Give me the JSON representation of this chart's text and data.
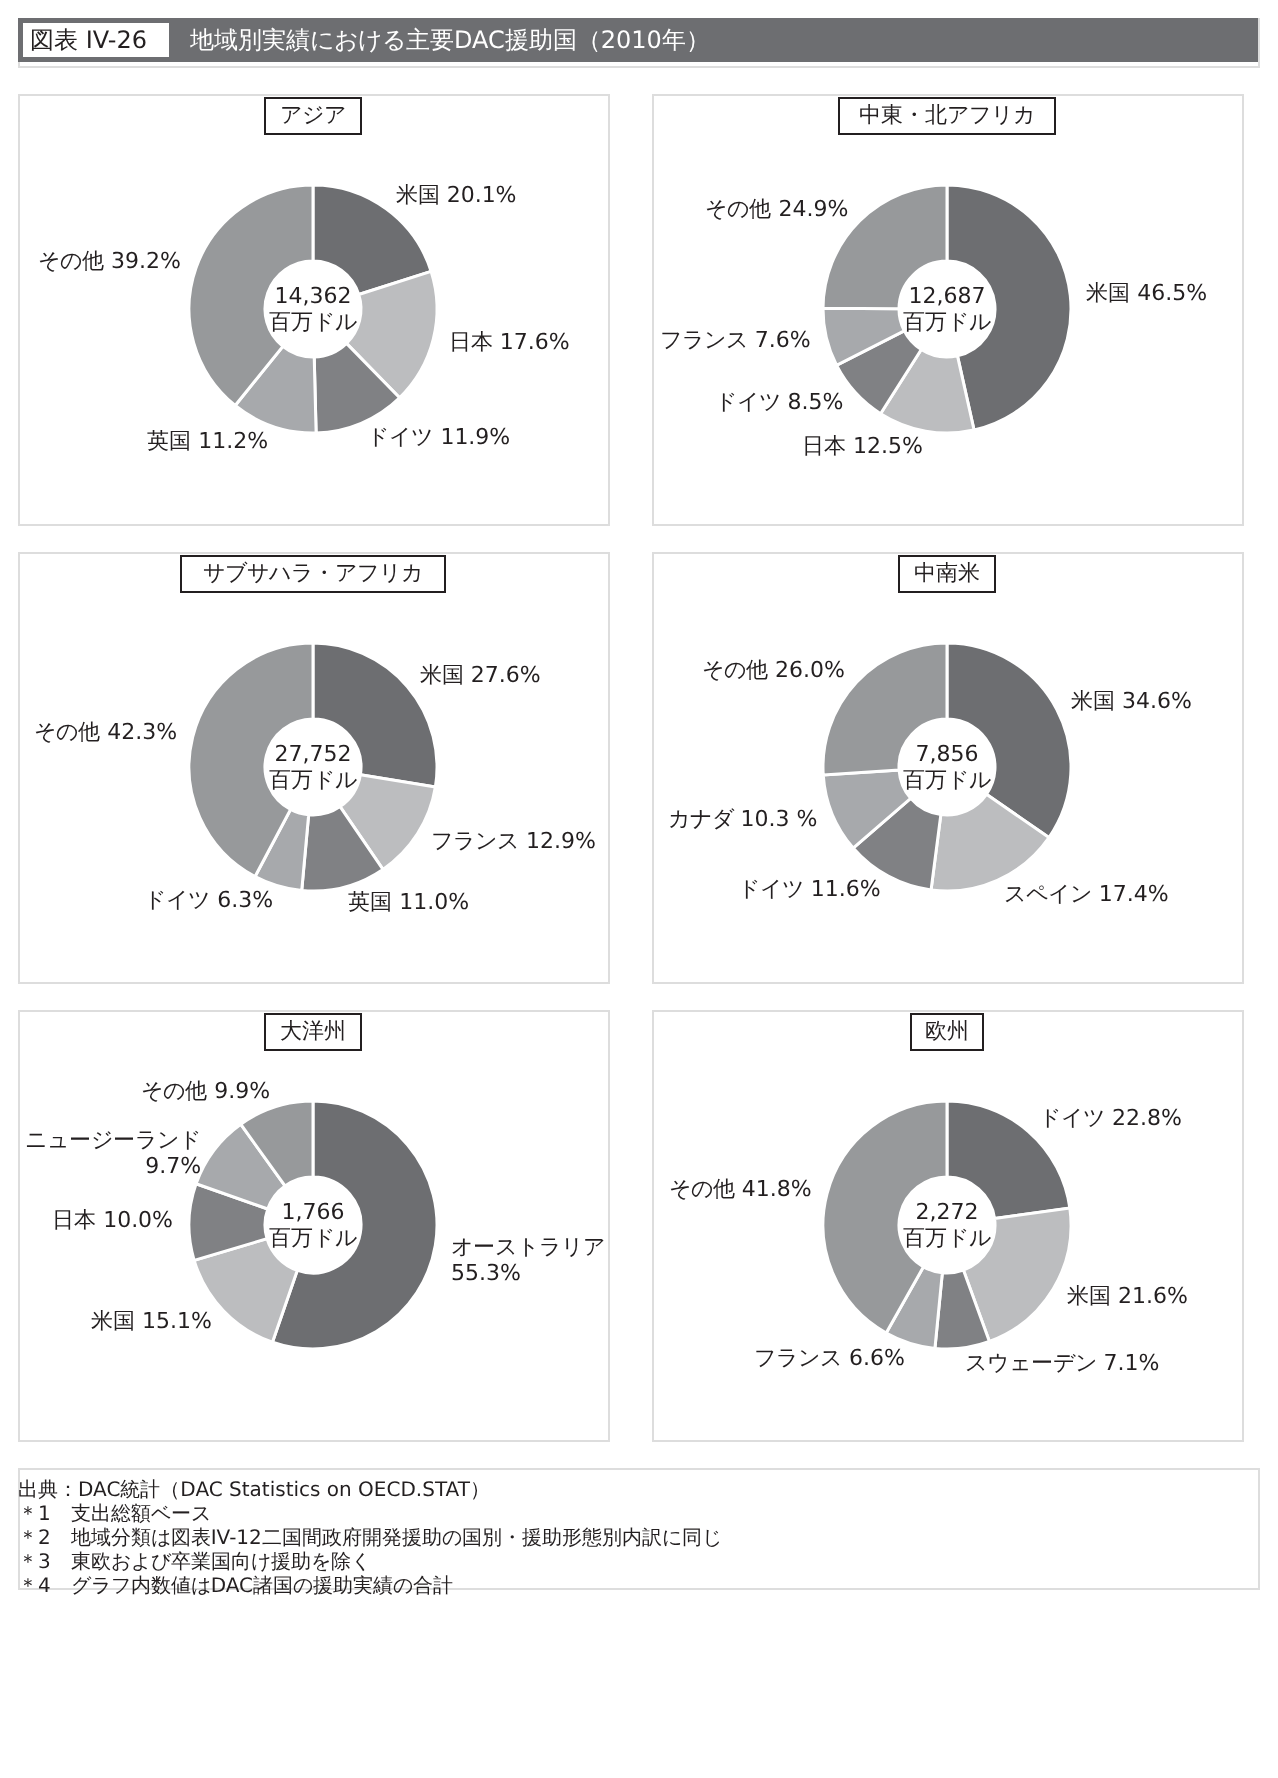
{
  "chart_data": [
    {
      "type": "other",
      "title": "図表 IV-26",
      "subtitle": "地域別実績における主要DAC援助国（2010年）"
    },
    {
      "type": "donut",
      "title": "アジア",
      "categories": [
        "米国",
        "日本",
        "ドイツ",
        "英国",
        "その他"
      ],
      "values": [
        20.1,
        17.6,
        11.9,
        11.2,
        39.2
      ],
      "value_labels": [
        "20.1%",
        "17.6%",
        "11.9%",
        "11.2%",
        "39.2%"
      ],
      "colors": [
        "#6d6e71",
        "#bcbdbf",
        "#808184",
        "#a7a9ac",
        "#97999b"
      ],
      "annotations": [
        "14,362",
        "百万ドル"
      ]
    },
    {
      "type": "donut",
      "title": "中東・北アフリカ",
      "categories": [
        "米国",
        "日本",
        "ドイツ",
        "フランス",
        "その他"
      ],
      "values": [
        46.5,
        12.5,
        8.5,
        7.6,
        24.9
      ],
      "value_labels": [
        "46.5%",
        "12.5%",
        "8.5%",
        "7.6%",
        "24.9%"
      ],
      "colors": [
        "#6d6e71",
        "#bcbdbf",
        "#808184",
        "#a7a9ac",
        "#97999b"
      ],
      "annotations": [
        "12,687",
        "百万ドル"
      ]
    },
    {
      "type": "donut",
      "title": "サブサハラ・アフリカ",
      "categories": [
        "米国",
        "フランス",
        "英国",
        "ドイツ",
        "その他"
      ],
      "values": [
        27.6,
        12.9,
        11.0,
        6.3,
        42.3
      ],
      "value_labels": [
        "27.6%",
        "12.9%",
        "11.0%",
        "6.3%",
        "42.3%"
      ],
      "colors": [
        "#6d6e71",
        "#bcbdbf",
        "#808184",
        "#a7a9ac",
        "#97999b"
      ],
      "annotations": [
        "27,752",
        "百万ドル"
      ]
    },
    {
      "type": "donut",
      "title": "中南米",
      "categories": [
        "米国",
        "スペイン",
        "ドイツ",
        "カナダ",
        "その他"
      ],
      "values": [
        34.6,
        17.4,
        11.6,
        10.3,
        26.0
      ],
      "value_labels": [
        "34.6%",
        "17.4%",
        "11.6%",
        "10.3 %",
        "26.0%"
      ],
      "colors": [
        "#6d6e71",
        "#bcbdbf",
        "#808184",
        "#a7a9ac",
        "#97999b"
      ],
      "annotations": [
        "7,856",
        "百万ドル"
      ]
    },
    {
      "type": "donut",
      "title": "大洋州",
      "categories": [
        "オーストラリア",
        "米国",
        "日本",
        "ニュージーランド",
        "その他"
      ],
      "values": [
        55.3,
        15.1,
        10.0,
        9.7,
        9.9
      ],
      "value_labels": [
        "55.3%",
        "15.1%",
        "10.0%",
        "9.7%",
        "9.9%"
      ],
      "colors": [
        "#6d6e71",
        "#bcbdbf",
        "#808184",
        "#a7a9ac",
        "#97999b"
      ],
      "annotations": [
        "1,766",
        "百万ドル"
      ]
    },
    {
      "type": "donut",
      "title": "欧州",
      "categories": [
        "ドイツ",
        "米国",
        "スウェーデン",
        "フランス",
        "その他"
      ],
      "values": [
        22.8,
        21.6,
        7.1,
        6.6,
        41.8
      ],
      "value_labels": [
        "22.8%",
        "21.6%",
        "7.1%",
        "6.6%",
        "41.8%"
      ],
      "colors": [
        "#6d6e71",
        "#bcbdbf",
        "#808184",
        "#a7a9ac",
        "#97999b"
      ],
      "annotations": [
        "2,272",
        "百万ドル"
      ]
    },
    {
      "type": "other",
      "annotations": [
        "出典：DAC統計（DAC Statistics on OECD.STAT）",
        "＊1　支出総額ベース",
        "＊2　地域分類は図表IV-12二国間政府開発援助の国別・援助形態別内訳に同じ",
        "＊3　東欧および卒業国向け援助を除く",
        "＊4　グラフ内数値はDAC諸国の援助実績の合計"
      ]
    }
  ]
}
